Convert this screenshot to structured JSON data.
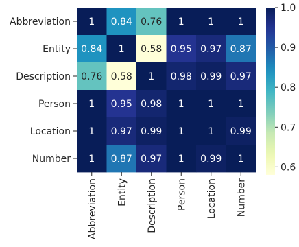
{
  "chart_data": {
    "type": "heatmap",
    "rows": [
      "Abbreviation",
      "Entity",
      "Description",
      "Person",
      "Location",
      "Number"
    ],
    "columns": [
      "Abbreviation",
      "Entity",
      "Description",
      "Person",
      "Location",
      "Number"
    ],
    "values": [
      [
        1,
        0.84,
        0.76,
        1,
        1,
        1
      ],
      [
        0.84,
        1,
        0.58,
        0.95,
        0.97,
        0.87
      ],
      [
        0.76,
        0.58,
        1,
        0.98,
        0.99,
        0.97
      ],
      [
        1,
        0.95,
        0.98,
        1,
        1,
        1
      ],
      [
        1,
        0.97,
        0.99,
        1,
        1,
        0.99
      ],
      [
        1,
        0.87,
        0.97,
        1,
        0.99,
        1
      ]
    ],
    "cell_labels": [
      [
        "1",
        "0.84",
        "0.76",
        "1",
        "1",
        "1"
      ],
      [
        "0.84",
        "1",
        "0.58",
        "0.95",
        "0.97",
        "0.87"
      ],
      [
        "0.76",
        "0.58",
        "1",
        "0.98",
        "0.99",
        "0.97"
      ],
      [
        "1",
        "0.95",
        "0.98",
        "1",
        "1",
        "1"
      ],
      [
        "1",
        "0.97",
        "0.99",
        "1",
        "1",
        "0.99"
      ],
      [
        "1",
        "0.87",
        "0.97",
        "1",
        "0.99",
        "1"
      ]
    ],
    "colorscale": "YlGnBu",
    "value_range": [
      0.58,
      1.0
    ],
    "colorbar": {
      "ticks": [
        0.6,
        0.7,
        0.8,
        0.9,
        1.0
      ],
      "tick_labels": [
        "0.6",
        "0.7",
        "0.8",
        "0.9",
        "1.0"
      ],
      "position": "right"
    },
    "title": "",
    "xlabel": "",
    "ylabel": "",
    "grid": false
  }
}
